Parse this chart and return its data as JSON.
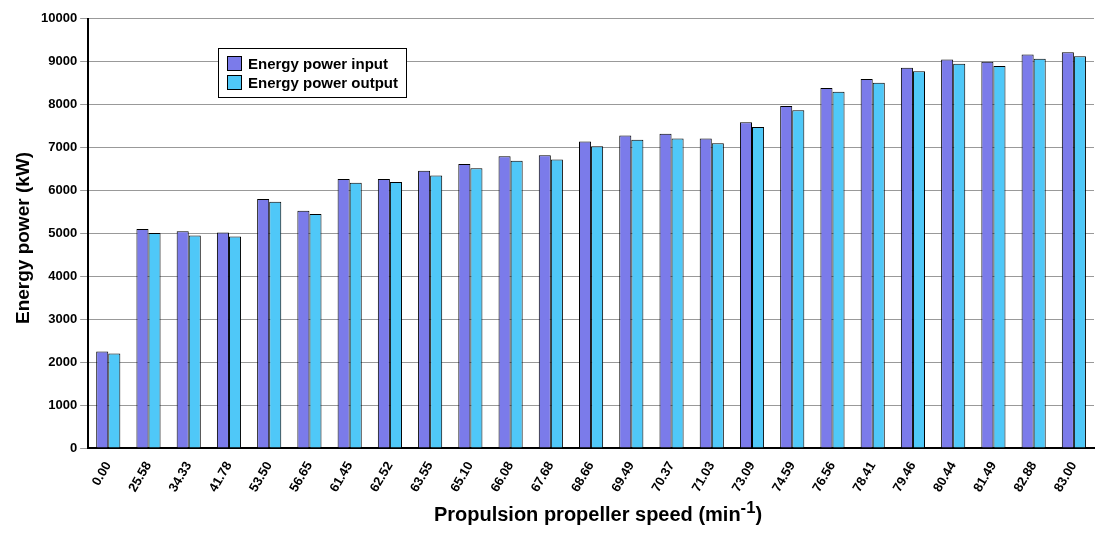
{
  "chart_data": {
    "type": "bar",
    "xlabel": "Propulsion propeller speed (min$^{-1}$)",
    "ylabel": "Energy power (kW)",
    "categories": [
      "0.00",
      "25.58",
      "34.33",
      "41.78",
      "53.50",
      "56.65",
      "61.45",
      "62.52",
      "63.55",
      "65.10",
      "66.08",
      "67.68",
      "68.66",
      "69.49",
      "70.37",
      "71.03",
      "73.09",
      "74.59",
      "76.56",
      "78.41",
      "79.46",
      "80.44",
      "81.49",
      "82.88",
      "83.00"
    ],
    "series": [
      {
        "name": "Energy power input",
        "color": "#7b7bea",
        "values": [
          2250,
          5100,
          5050,
          5020,
          5800,
          5530,
          6270,
          6270,
          6460,
          6620,
          6800,
          6820,
          7140,
          7280,
          7320,
          7210,
          7590,
          7970,
          8390,
          8600,
          8860,
          9050,
          9000,
          9170,
          9220
        ]
      },
      {
        "name": "Energy power output",
        "color": "#4fc8f8",
        "values": [
          2200,
          5010,
          4950,
          4930,
          5740,
          5450,
          6180,
          6200,
          6350,
          6520,
          6690,
          6720,
          7030,
          7180,
          7210,
          7100,
          7480,
          7870,
          8300,
          8510,
          8780,
          8950,
          8900,
          9070,
          9130
        ]
      }
    ],
    "ylim": [
      0,
      10000
    ],
    "yticks": [
      0,
      1000,
      2000,
      3000,
      4000,
      5000,
      6000,
      7000,
      8000,
      9000,
      10000
    ],
    "grid": "y",
    "legend": "top left"
  }
}
